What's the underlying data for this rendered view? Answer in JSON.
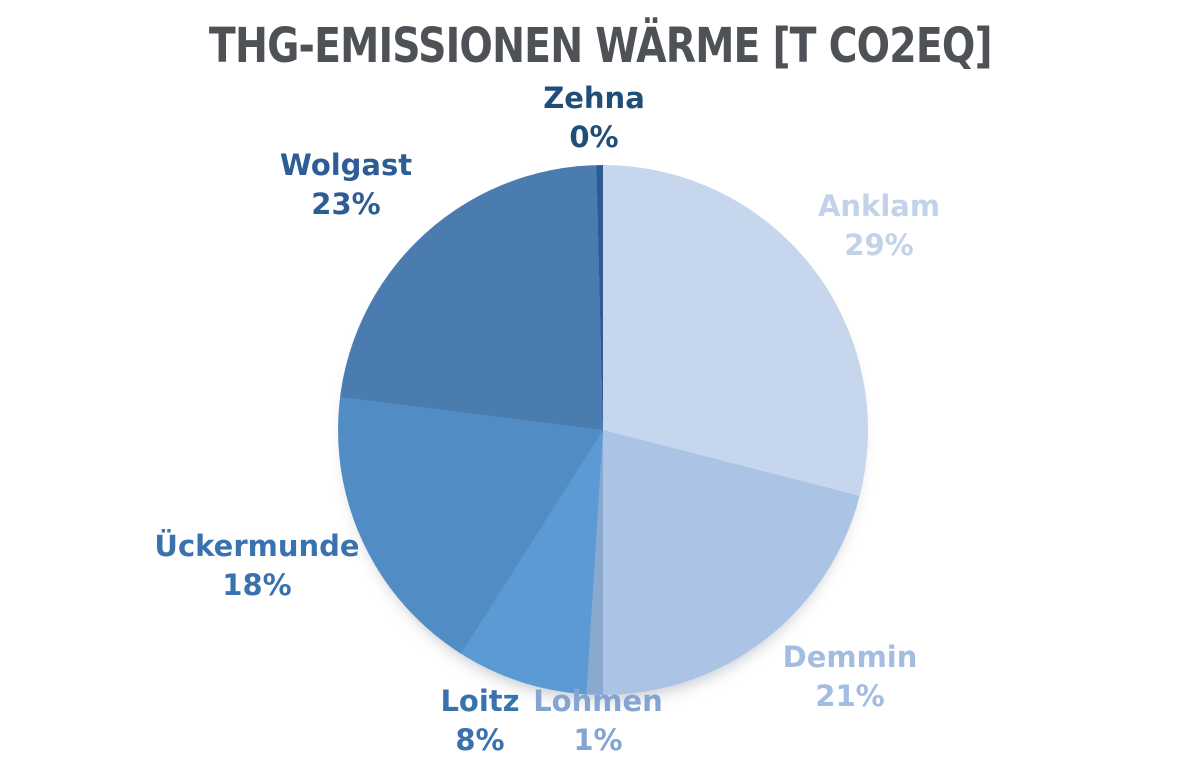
{
  "title": "THG-EMISSIONEN WÄRME [T CO2EQ]",
  "chart_data": {
    "type": "pie",
    "title": "THG-EMISSIONEN WÄRME [T CO2EQ]",
    "categories": [
      "Anklam",
      "Demmin",
      "Lohmen",
      "Loitz",
      "Ückermunde",
      "Wolgast",
      "Zehna"
    ],
    "values": [
      29,
      21,
      1,
      8,
      18,
      23,
      0
    ],
    "units": "%",
    "legend_position": "labels-around-pie",
    "start_angle_deg": 0,
    "direction": "clockwise",
    "title_color": "#4e5257",
    "background_color": "#ffffff",
    "slices": [
      {
        "name": "Anklam",
        "pct_label": "29%",
        "value": 29,
        "start_deg": 0,
        "end_deg": 104.4,
        "color": "#c6d6ec",
        "label_color": "#c2d2e9"
      },
      {
        "name": "Demmin",
        "pct_label": "21%",
        "value": 21,
        "start_deg": 104.4,
        "end_deg": 180,
        "color": "#abc4e6",
        "label_color": "#a3bce1"
      },
      {
        "name": "Lohmen",
        "pct_label": "1%",
        "value": 1,
        "start_deg": 180,
        "end_deg": 183.6,
        "color": "#8aa9cf",
        "label_color": "#84a5d2"
      },
      {
        "name": "Loitz",
        "pct_label": "8%",
        "value": 8,
        "start_deg": 183.6,
        "end_deg": 212.4,
        "color": "#5b9ad4",
        "label_color": "#3a72ad"
      },
      {
        "name": "Ückermunde",
        "pct_label": "18%",
        "value": 18,
        "start_deg": 212.4,
        "end_deg": 277.2,
        "color": "#528cc4",
        "label_color": "#3a72ad"
      },
      {
        "name": "Wolgast",
        "pct_label": "23%",
        "value": 23,
        "start_deg": 277.2,
        "end_deg": 358.6,
        "color": "#4a7cb0",
        "label_color": "#2e5c94"
      },
      {
        "name": "Zehna",
        "pct_label": "0%",
        "value": 0,
        "start_deg": 358.6,
        "end_deg": 360,
        "color": "#2b5c8f",
        "label_color": "#1f4e79"
      }
    ]
  }
}
